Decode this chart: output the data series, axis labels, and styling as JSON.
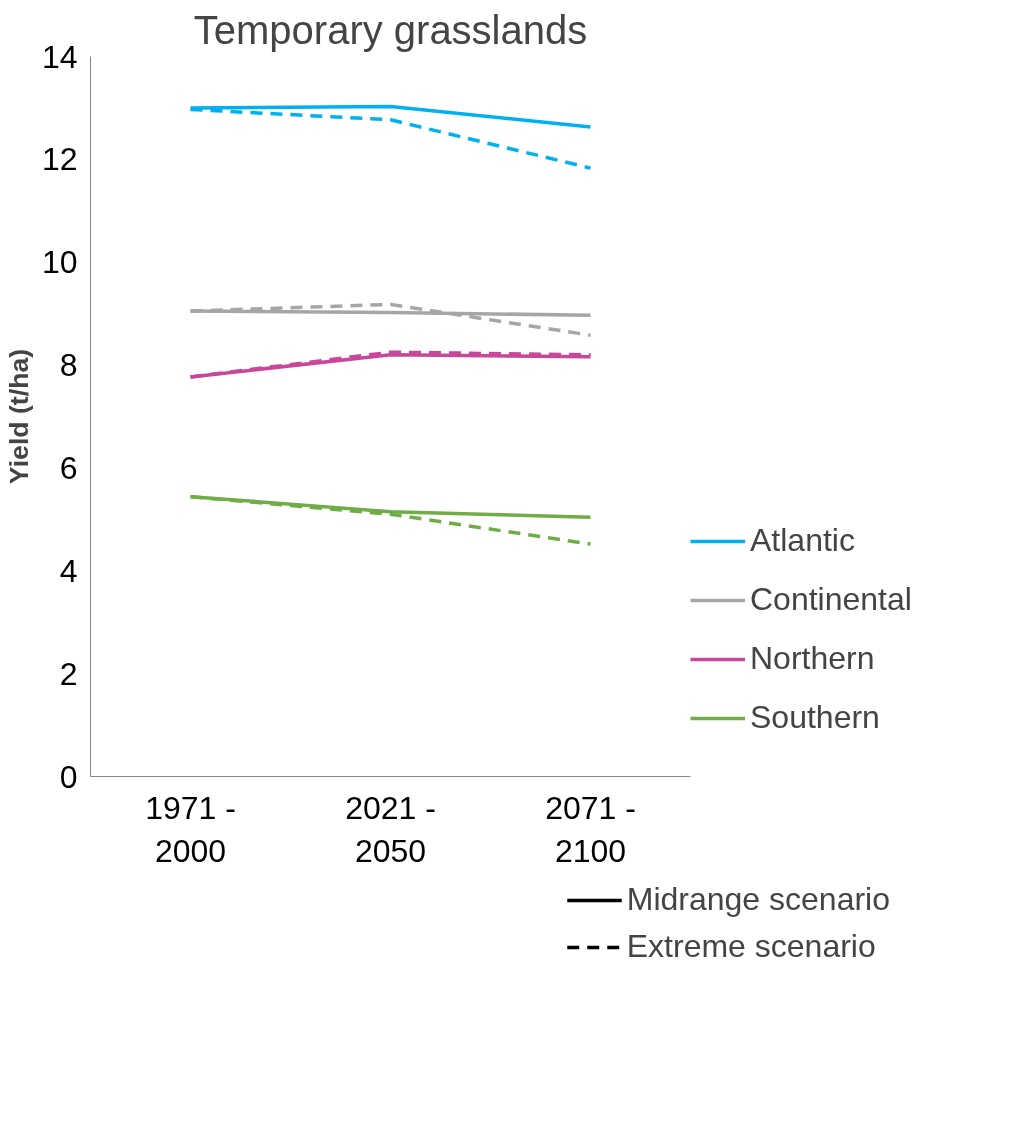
{
  "chart_data": {
    "type": "line",
    "title": "Temporary grasslands",
    "ylabel": "Yield (t/ha)",
    "categories": [
      "1971 - 2000",
      "2021 - 2050",
      "2071 - 2100"
    ],
    "ylim": [
      0,
      14
    ],
    "yticks": [
      0,
      2,
      4,
      6,
      8,
      10,
      12,
      14
    ],
    "grid": false,
    "legend": "right",
    "marker": "none",
    "series": [
      {
        "name": "Atlantic",
        "color": "#00b0f0",
        "values": [
          13.0,
          13.03,
          12.63
        ],
        "line_style": "solid"
      },
      {
        "color": "#00b0f0",
        "values": [
          12.97,
          12.77,
          11.83
        ],
        "line_style": "dashed"
      },
      {
        "name": "Continental",
        "color": "#a6a6a6",
        "values": [
          9.05,
          9.02,
          8.97
        ],
        "line_style": "solid"
      },
      {
        "color": "#a6a6a6",
        "values": [
          9.05,
          9.18,
          8.58
        ],
        "line_style": "dashed"
      },
      {
        "name": "Northern",
        "color": "#c8479b",
        "values": [
          7.77,
          8.2,
          8.16
        ],
        "line_style": "solid"
      },
      {
        "color": "#c8479b",
        "values": [
          7.77,
          8.25,
          8.2
        ],
        "line_style": "dashed"
      },
      {
        "name": "Southern",
        "color": "#70ad47",
        "values": [
          5.44,
          5.15,
          5.04
        ],
        "line_style": "solid"
      },
      {
        "color": "#70ad47",
        "values": [
          5.44,
          5.1,
          4.52
        ],
        "line_style": "dashed"
      }
    ],
    "annotations": [
      "Midrange scenario",
      "Extreme scenario"
    ]
  }
}
